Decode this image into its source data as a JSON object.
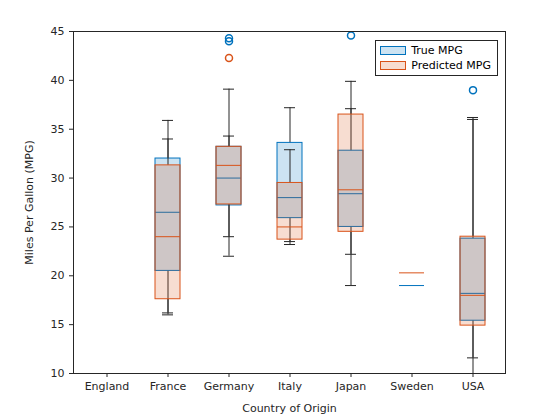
{
  "chart_data": {
    "type": "boxplot",
    "x_label": "Country of Origin",
    "y_label": "Miles Per Gallon (MPG)",
    "categories": [
      "England",
      "France",
      "Germany",
      "Italy",
      "Japan",
      "Sweden",
      "USA"
    ],
    "ylim": [
      10,
      45
    ],
    "yticks": [
      10,
      15,
      20,
      25,
      30,
      35,
      40,
      45
    ],
    "legend": "northeast",
    "grid": false,
    "series": [
      {
        "name": "True MPG",
        "color": "#0072BD",
        "boxes": [
          null,
          {
            "min": 16.2,
            "q1": 20.5,
            "median": 26.5,
            "q3": 32.0,
            "max": 34.0,
            "outliers": []
          },
          {
            "min": 22.0,
            "q1": 27.2,
            "median": 30.0,
            "q3": 33.2,
            "max": 39.1,
            "outliers": [
              44.3,
              44.0
            ]
          },
          {
            "min": 23.2,
            "q1": 25.9,
            "median": 28.0,
            "q3": 33.6,
            "max": 37.2,
            "outliers": []
          },
          {
            "min": 22.2,
            "q1": 25.0,
            "median": 28.4,
            "q3": 32.8,
            "max": 37.1,
            "outliers": [
              44.6
            ]
          },
          {
            "min": 19.0,
            "q1": 19.0,
            "median": 19.0,
            "q3": 19.0,
            "max": 19.0,
            "outliers": []
          },
          {
            "min": 10.0,
            "q1": 15.4,
            "median": 18.2,
            "q3": 23.8,
            "max": 36.2,
            "outliers": [
              39.0
            ]
          }
        ]
      },
      {
        "name": "Predicted MPG",
        "color": "#D95319",
        "boxes": [
          null,
          {
            "min": 16.0,
            "q1": 17.6,
            "median": 24.0,
            "q3": 31.3,
            "max": 35.9,
            "outliers": []
          },
          {
            "min": 24.0,
            "q1": 27.3,
            "median": 31.3,
            "q3": 33.2,
            "max": 34.3,
            "outliers": [
              42.3
            ]
          },
          {
            "min": 23.5,
            "q1": 23.7,
            "median": 25.0,
            "q3": 29.5,
            "max": 32.9,
            "outliers": []
          },
          {
            "min": 19.0,
            "q1": 24.5,
            "median": 28.8,
            "q3": 36.5,
            "max": 39.9,
            "outliers": []
          },
          {
            "min": 20.3,
            "q1": 20.3,
            "median": 20.3,
            "q3": 20.3,
            "max": 20.3,
            "outliers": []
          },
          {
            "min": 11.6,
            "q1": 14.9,
            "median": 18.0,
            "q3": 24.0,
            "max": 36.0,
            "outliers": []
          }
        ]
      }
    ]
  }
}
